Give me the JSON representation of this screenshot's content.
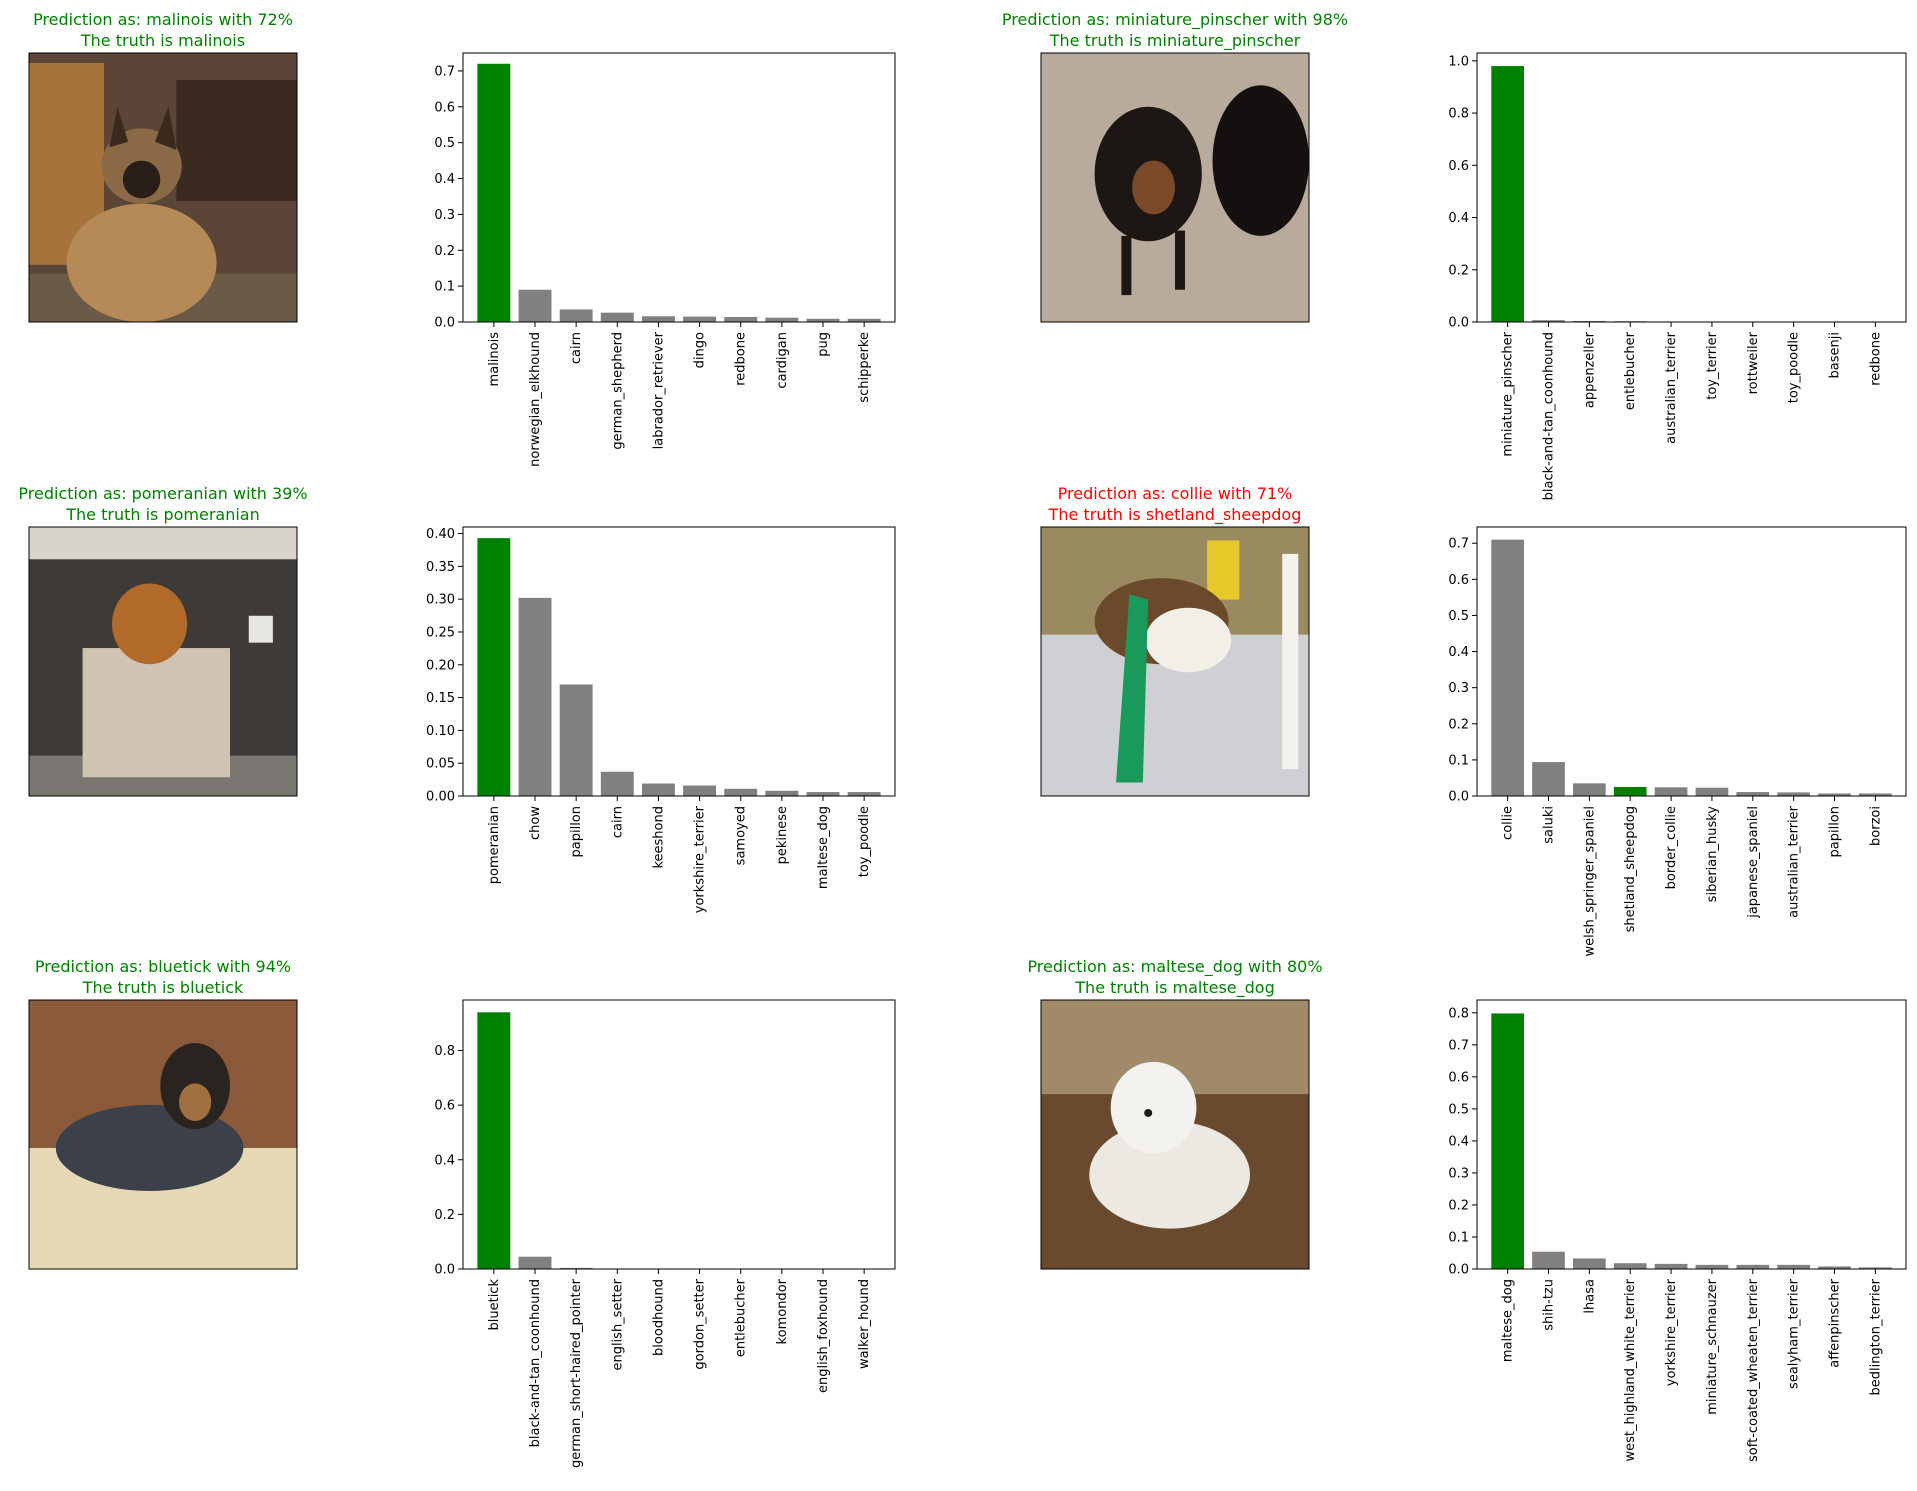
{
  "colors": {
    "correct": "#008000",
    "wrong": "#ff0000",
    "bar_default": "#808080",
    "bar_highlight": "#008000"
  },
  "panels": [
    {
      "photo": {
        "title_line1": "Prediction as: malinois with 72%",
        "title_line2": "The truth is malinois",
        "title_color": "#008000",
        "description": "tan German-shepherd type dog sitting in a kitchen"
      },
      "chart_data": {
        "type": "bar",
        "categories": [
          "malinois",
          "norwegian_elkhound",
          "cairn",
          "german_shepherd",
          "labrador_retriever",
          "dingo",
          "redbone",
          "cardigan",
          "pug",
          "schipperke"
        ],
        "values": [
          0.72,
          0.09,
          0.035,
          0.026,
          0.016,
          0.015,
          0.014,
          0.012,
          0.009,
          0.009
        ],
        "highlight_index": 0,
        "ylim": [
          0,
          0.75
        ],
        "yticks": [
          0.0,
          0.1,
          0.2,
          0.3,
          0.4,
          0.5,
          0.6,
          0.7
        ],
        "ytick_labels": [
          "0.0",
          "0.1",
          "0.2",
          "0.3",
          "0.4",
          "0.5",
          "0.6",
          "0.7"
        ],
        "title": "",
        "xlabel": "",
        "ylabel": "",
        "grid": false
      }
    },
    {
      "photo": {
        "title_line1": "Prediction as: miniature_pinscher with 98%",
        "title_line2": "The truth is miniature_pinscher",
        "title_color": "#008000",
        "description": "two black and tan miniature pinschers on carpet"
      },
      "chart_data": {
        "type": "bar",
        "categories": [
          "miniature_pinscher",
          "black-and-tan_coonhound",
          "appenzeller",
          "entlebucher",
          "australian_terrier",
          "toy_terrier",
          "rottweiler",
          "toy_poodle",
          "basenji",
          "redbone"
        ],
        "values": [
          0.98,
          0.007,
          0.004,
          0.003,
          0.002,
          0.002,
          0.001,
          0.001,
          0.001,
          0.001
        ],
        "highlight_index": 0,
        "ylim": [
          0,
          1.03
        ],
        "yticks": [
          0.0,
          0.2,
          0.4,
          0.6,
          0.8,
          1.0
        ],
        "ytick_labels": [
          "0.0",
          "0.2",
          "0.4",
          "0.6",
          "0.8",
          "1.0"
        ],
        "title": "",
        "xlabel": "",
        "ylabel": "",
        "grid": false
      }
    },
    {
      "photo": {
        "title_line1": "Prediction as: pomeranian with 39%",
        "title_line2": "The truth is pomeranian",
        "title_color": "#008000",
        "description": "fluffy pomeranian sitting in a wicker basket"
      },
      "chart_data": {
        "type": "bar",
        "categories": [
          "pomeranian",
          "chow",
          "papillon",
          "cairn",
          "keeshond",
          "yorkshire_terrier",
          "samoyed",
          "pekinese",
          "maltese_dog",
          "toy_poodle"
        ],
        "values": [
          0.393,
          0.302,
          0.17,
          0.037,
          0.019,
          0.016,
          0.011,
          0.008,
          0.006,
          0.006
        ],
        "highlight_index": 0,
        "ylim": [
          0,
          0.41
        ],
        "yticks": [
          0.0,
          0.05,
          0.1,
          0.15,
          0.2,
          0.25,
          0.3,
          0.35,
          0.4
        ],
        "ytick_labels": [
          "0.00",
          "0.05",
          "0.10",
          "0.15",
          "0.20",
          "0.25",
          "0.30",
          "0.35",
          "0.40"
        ],
        "title": "",
        "xlabel": "",
        "ylabel": "",
        "grid": false
      }
    },
    {
      "photo": {
        "title_line1": "Prediction as: collie with 71%",
        "title_line2": "The truth is shetland_sheepdog",
        "title_color": "#ff0000",
        "description": "sheltie jumping over an agility hurdle"
      },
      "chart_data": {
        "type": "bar",
        "categories": [
          "collie",
          "saluki",
          "welsh_springer_spaniel",
          "shetland_sheepdog",
          "border_collie",
          "siberian_husky",
          "japanese_spaniel",
          "australian_terrier",
          "papillon",
          "borzoi"
        ],
        "values": [
          0.71,
          0.094,
          0.035,
          0.025,
          0.024,
          0.023,
          0.011,
          0.01,
          0.007,
          0.007
        ],
        "highlight_index": 3,
        "ylim": [
          0,
          0.745
        ],
        "yticks": [
          0.0,
          0.1,
          0.2,
          0.3,
          0.4,
          0.5,
          0.6,
          0.7
        ],
        "ytick_labels": [
          "0.0",
          "0.1",
          "0.2",
          "0.3",
          "0.4",
          "0.5",
          "0.6",
          "0.7"
        ],
        "title": "",
        "xlabel": "",
        "ylabel": "",
        "grid": false
      }
    },
    {
      "photo": {
        "title_line1": "Prediction as: bluetick with 94%",
        "title_line2": "The truth is bluetick",
        "title_color": "#008000",
        "description": "bluetick coonhound lying on a dog bed"
      },
      "chart_data": {
        "type": "bar",
        "categories": [
          "bluetick",
          "black-and-tan_coonhound",
          "german_short-haired_pointer",
          "english_setter",
          "bloodhound",
          "gordon_setter",
          "entlebucher",
          "komondor",
          "english_foxhound",
          "walker_hound"
        ],
        "values": [
          0.94,
          0.045,
          0.004,
          0.002,
          0.002,
          0.001,
          0.001,
          0.001,
          0.001,
          0.001
        ],
        "highlight_index": 0,
        "ylim": [
          0,
          0.985
        ],
        "yticks": [
          0.0,
          0.2,
          0.4,
          0.6,
          0.8
        ],
        "ytick_labels": [
          "0.0",
          "0.2",
          "0.4",
          "0.6",
          "0.8"
        ],
        "title": "",
        "xlabel": "",
        "ylabel": "",
        "grid": false
      }
    },
    {
      "photo": {
        "title_line1": "Prediction as: maltese_dog with 80%",
        "title_line2": "The truth is maltese_dog",
        "title_color": "#008000",
        "description": "white fluffy dog sitting on autumn leaves"
      },
      "chart_data": {
        "type": "bar",
        "categories": [
          "maltese_dog",
          "shih-tzu",
          "lhasa",
          "west_highland_white_terrier",
          "yorkshire_terrier",
          "miniature_schnauzer",
          "soft-coated_wheaten_terrier",
          "sealyham_terrier",
          "affenpinscher",
          "bedlington_terrier"
        ],
        "values": [
          0.798,
          0.054,
          0.033,
          0.018,
          0.016,
          0.013,
          0.013,
          0.013,
          0.008,
          0.005
        ],
        "highlight_index": 0,
        "ylim": [
          0,
          0.84
        ],
        "yticks": [
          0.0,
          0.1,
          0.2,
          0.3,
          0.4,
          0.5,
          0.6,
          0.7,
          0.8
        ],
        "ytick_labels": [
          "0.0",
          "0.1",
          "0.2",
          "0.3",
          "0.4",
          "0.5",
          "0.6",
          "0.7",
          "0.8"
        ],
        "title": "",
        "xlabel": "",
        "ylabel": "",
        "grid": false
      }
    }
  ]
}
